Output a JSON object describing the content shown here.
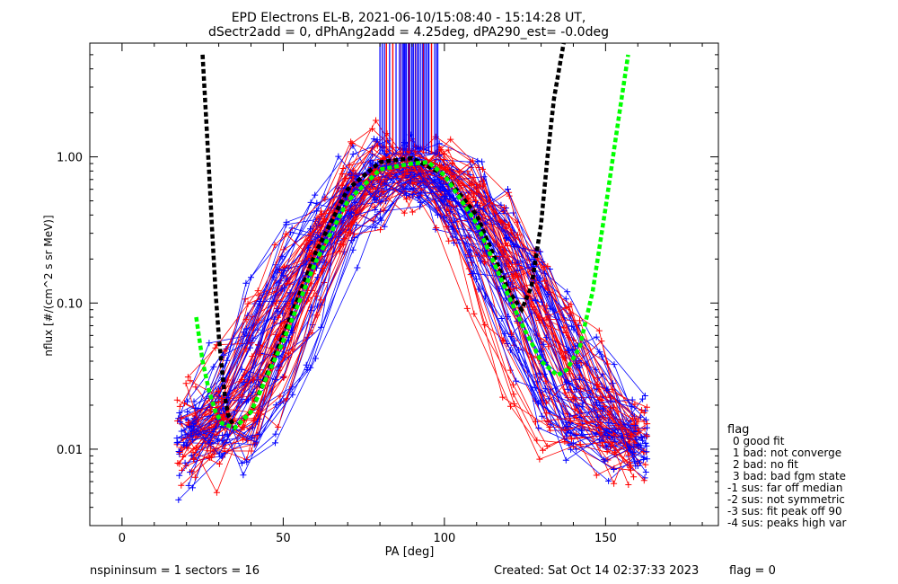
{
  "chart_data": {
    "type": "scatter",
    "title_line1": "EPD Electrons EL-B, 2021-06-10/15:08:40 - 15:14:28 UT,",
    "title_line2": "dSectr2add = 0, dPhAng2add = 4.25deg, dPA290_est=  -0.0deg",
    "xlabel": "PA [deg]",
    "ylabel": "nflux [#/(cm^2 s sr MeV)]",
    "xlim": [
      -10,
      185
    ],
    "ylim": [
      0.003,
      6.0
    ],
    "yscale": "log",
    "x_ticks": [
      0,
      50,
      100,
      150
    ],
    "x_tick_labels": [
      "0",
      "50",
      "100",
      "150"
    ],
    "y_ticks": [
      0.01,
      0.1,
      1.0
    ],
    "y_tick_labels": [
      "0.01",
      "0.10",
      "1.00"
    ],
    "colors": {
      "red": "#ff0000",
      "blue": "#0000ff",
      "black": "#000000",
      "green": "#00ff00"
    },
    "fits": [
      {
        "name": "black-fit",
        "color": "#000000",
        "x": [
          25,
          26,
          27,
          28,
          29,
          30,
          31,
          32,
          33,
          35,
          40,
          50,
          60,
          70,
          80,
          90,
          100,
          110,
          115,
          120,
          124,
          127,
          130,
          132,
          134,
          136,
          137
        ],
        "y": [
          5.0,
          2.0,
          0.8,
          0.3,
          0.12,
          0.06,
          0.035,
          0.022,
          0.017,
          0.014,
          0.018,
          0.06,
          0.22,
          0.6,
          0.92,
          0.98,
          0.75,
          0.4,
          0.22,
          0.12,
          0.09,
          0.13,
          0.35,
          1.0,
          2.5,
          4.5,
          6.0
        ]
      },
      {
        "name": "green-fit",
        "color": "#00ff00",
        "x": [
          23,
          25,
          27,
          29,
          31,
          35,
          40,
          50,
          60,
          70,
          80,
          90,
          95,
          100,
          110,
          120,
          125,
          130,
          135,
          138,
          142,
          146,
          150,
          154,
          157
        ],
        "y": [
          0.08,
          0.04,
          0.025,
          0.018,
          0.015,
          0.014,
          0.018,
          0.055,
          0.19,
          0.5,
          0.82,
          0.9,
          0.92,
          0.75,
          0.35,
          0.11,
          0.065,
          0.04,
          0.032,
          0.035,
          0.05,
          0.12,
          0.45,
          1.8,
          5.0
        ]
      }
    ],
    "vertical_lines": {
      "x_min": 80,
      "x_max": 98,
      "y_top": 6.0,
      "y_bottom": 1.05,
      "red_x": [
        82,
        84,
        86.5,
        89,
        91,
        93.5,
        96
      ],
      "blue_x": [
        80,
        80.7,
        81.4,
        83,
        85,
        87.3,
        88,
        90,
        92,
        94.3,
        95.2,
        97,
        97.6
      ]
    },
    "scatter_seed": {
      "traces_red": 45,
      "traces_blue": 45,
      "points_per_trace": 15,
      "x_start": 20,
      "x_end": 160
    },
    "legend": {
      "title": "flag",
      "items": [
        "0 good fit",
        "1 bad: not converge",
        "2 bad: no fit",
        "3 bad: bad fgm state",
        "-1 sus: far off median",
        "-2 sus: not symmetric",
        "-3 sus: fit peak off 90",
        "-4 sus: peaks high var"
      ]
    },
    "footer": {
      "left": "nspininsum =  1  sectors = 16",
      "created": "Created: Sat Oct 14 02:37:33 2023",
      "flag": "flag = 0"
    }
  }
}
